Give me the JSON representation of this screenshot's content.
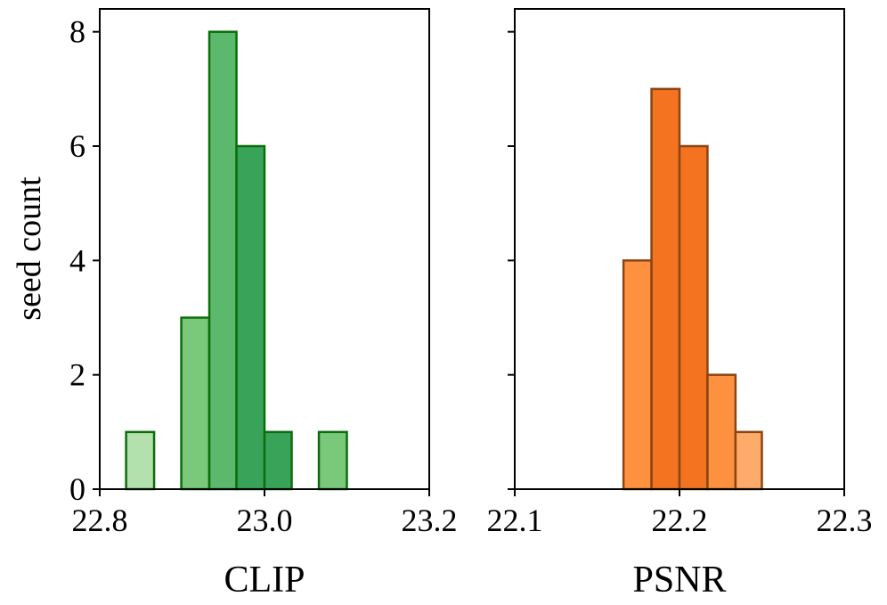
{
  "chart_data": [
    {
      "type": "histogram",
      "xlabel": "CLIP",
      "ylabel": "seed count",
      "xlim": [
        22.8,
        23.2
      ],
      "ylim": [
        0,
        8.4
      ],
      "xticks": [
        "22.8",
        "23.0",
        "23.2"
      ],
      "yticks": [
        "0",
        "2",
        "4",
        "6",
        "8"
      ],
      "bar_edge_color": "#0a6e0a",
      "bars": [
        {
          "x0": 22.832,
          "x1": 22.866,
          "value": 1,
          "color": "#b3e0ac"
        },
        {
          "x0": 22.899,
          "x1": 22.933,
          "value": 3,
          "color": "#7ac97a"
        },
        {
          "x0": 22.933,
          "x1": 22.966,
          "value": 8,
          "color": "#5cb86c"
        },
        {
          "x0": 22.966,
          "x1": 23.0,
          "value": 6,
          "color": "#3aa35a"
        },
        {
          "x0": 23.0,
          "x1": 23.033,
          "value": 1,
          "color": "#3aa35a"
        },
        {
          "x0": 23.066,
          "x1": 23.1,
          "value": 1,
          "color": "#7ac97a"
        }
      ]
    },
    {
      "type": "histogram",
      "xlabel": "PSNR",
      "ylabel": "",
      "xlim": [
        22.1,
        22.3
      ],
      "ylim": [
        0,
        8.4
      ],
      "xticks": [
        "22.1",
        "22.2",
        "22.3"
      ],
      "yticks": [
        "0",
        "2",
        "4",
        "6",
        "8"
      ],
      "bar_edge_color": "#8b4513",
      "bars": [
        {
          "x0": 22.166,
          "x1": 22.183,
          "value": 4,
          "color": "#fd913f"
        },
        {
          "x0": 22.183,
          "x1": 22.2,
          "value": 7,
          "color": "#f37321"
        },
        {
          "x0": 22.2,
          "x1": 22.217,
          "value": 6,
          "color": "#f37321"
        },
        {
          "x0": 22.217,
          "x1": 22.234,
          "value": 2,
          "color": "#fd913f"
        },
        {
          "x0": 22.234,
          "x1": 22.25,
          "value": 1,
          "color": "#fdab6a"
        }
      ]
    }
  ]
}
